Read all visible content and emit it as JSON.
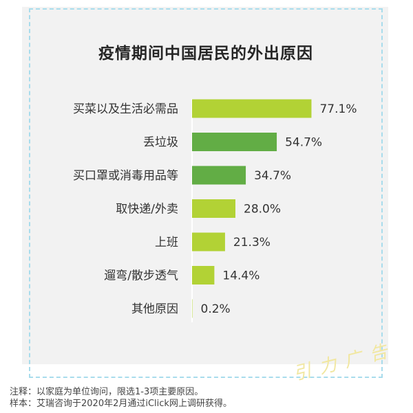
{
  "chart_data": {
    "type": "bar",
    "orientation": "horizontal",
    "title": "疫情期间中国居民的外出原因",
    "categories": [
      "买菜以及生活必需品",
      "丢垃圾",
      "买口罩或消毒用品等",
      "取快递/外卖",
      "上班",
      "遛弯/散步透气",
      "其他原因"
    ],
    "values": [
      77.1,
      54.7,
      34.7,
      28.0,
      21.3,
      14.4,
      0.2
    ],
    "value_labels": [
      "77.1%",
      "54.7%",
      "34.7%",
      "28.0%",
      "21.3%",
      "14.4%",
      "0.2%"
    ],
    "bar_colors": [
      "#b2d235",
      "#62ad45",
      "#62ad45",
      "#b2d235",
      "#b2d235",
      "#b2d235",
      "#b2d235"
    ],
    "xlim": [
      0,
      100
    ],
    "grid": false,
    "legend": "none"
  },
  "notes": {
    "note": "注释：以家庭为单位询问，限选1-3项主要原因。",
    "source": "样本：艾瑞咨询于2020年2月通过iClick网上调研获得。"
  },
  "watermark": "引力广告",
  "colors": {
    "background": "#f2f2f2",
    "frame": "#a8dcec",
    "light_green": "#b2d235",
    "dark_green": "#62ad45"
  }
}
